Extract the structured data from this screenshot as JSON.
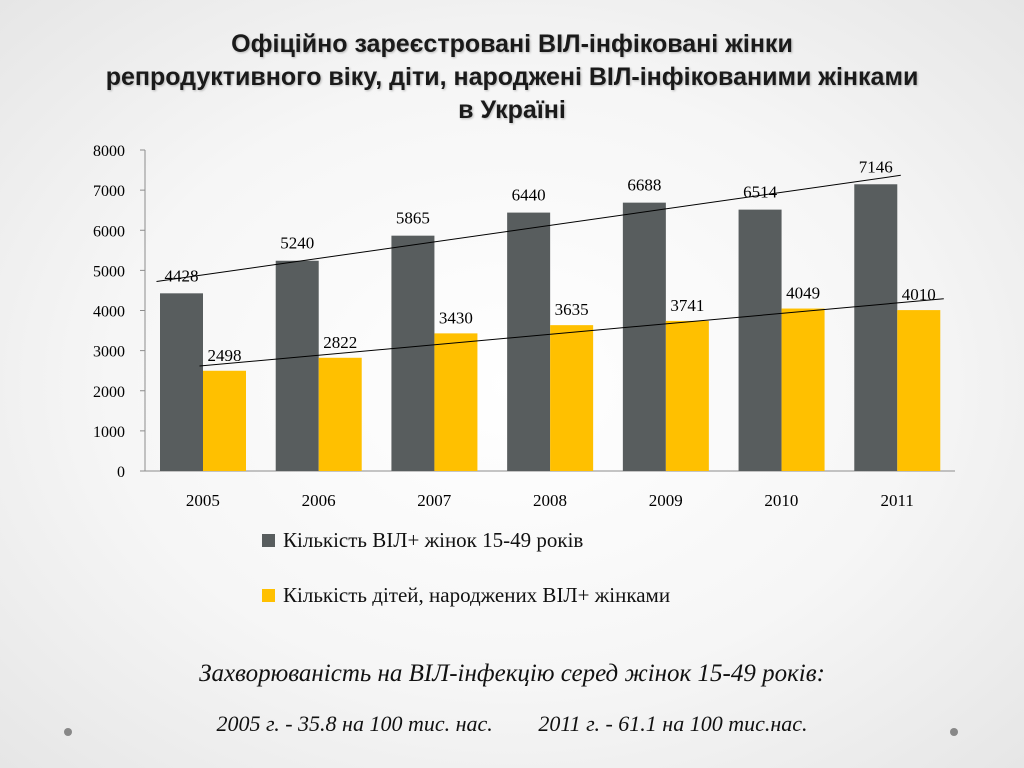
{
  "title_lines": [
    "Офіційно зареєстровані ВІЛ-інфіковані жінки",
    "репродуктивного віку, діти, народжені ВІЛ-інфікованими жінками",
    "в Україні"
  ],
  "chart_data": {
    "type": "bar",
    "categories": [
      "2005",
      "2006",
      "2007",
      "2008",
      "2009",
      "2010",
      "2011"
    ],
    "series": [
      {
        "name": "Кількість ВІЛ+ жінок 15-49 років",
        "color": "#585d5e",
        "values": [
          4428,
          5240,
          5865,
          6440,
          6688,
          6514,
          7146
        ]
      },
      {
        "name": "Кількість дітей, народжених ВІЛ+ жінками",
        "color": "#ffc000",
        "values": [
          2498,
          2822,
          3430,
          3635,
          3741,
          4049,
          4010
        ]
      }
    ],
    "trendlines": "linear",
    "ylim": [
      0,
      8000
    ],
    "yticks": [
      "0",
      "1000",
      "2000",
      "3000",
      "4000",
      "5000",
      "6000",
      "7000",
      "8000"
    ],
    "legend_position": "bottom",
    "grid": false
  },
  "notes": {
    "line1": "Захворюваність на ВІЛ-інфекцію серед жінок 15-49 років:",
    "line2a": "2005 г. - 35.8 на 100 тис. нас.",
    "line2b": "2011 г. - 61.1 на 100 тис.нас."
  }
}
